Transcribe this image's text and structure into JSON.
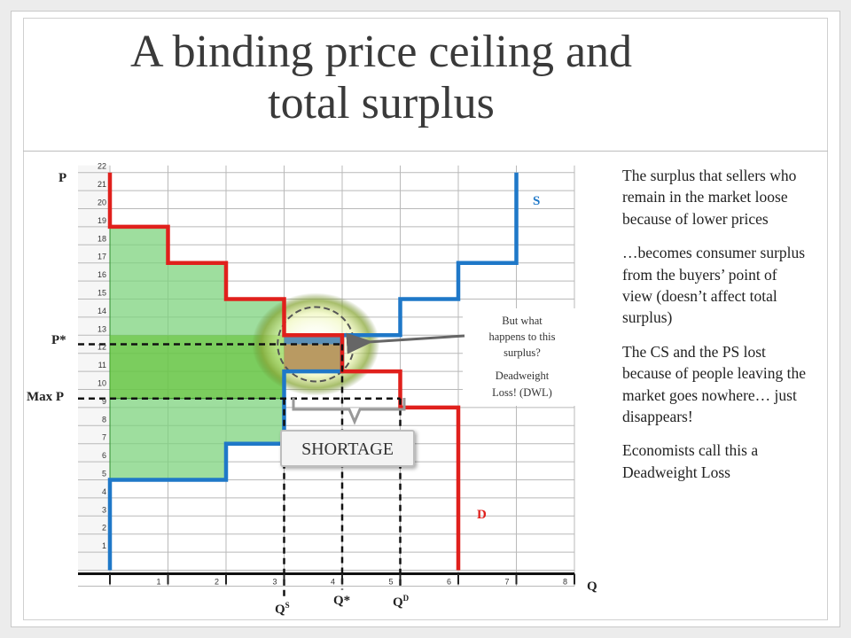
{
  "slide": {
    "title_line1": "A binding price ceiling and",
    "title_line2": "total surplus"
  },
  "axes": {
    "y_label": "P",
    "x_label": "Q",
    "y_ticks": [
      "1",
      "2",
      "3",
      "4",
      "5",
      "6",
      "7",
      "8",
      "9",
      "10",
      "11",
      "12",
      "13",
      "14",
      "15",
      "16",
      "17",
      "18",
      "19",
      "20",
      "21",
      "22"
    ],
    "x_ticks": [
      "1",
      "2",
      "3",
      "4",
      "5",
      "6",
      "7",
      "8"
    ]
  },
  "price_labels": {
    "p_star": "P*",
    "max_p": "Max P"
  },
  "quantity_labels": {
    "qs": "Q",
    "qs_sup": "S",
    "q_star": "Q*",
    "qd": "Q",
    "qd_sup": "D"
  },
  "curves": {
    "supply_label": "S",
    "demand_label": "D",
    "supply_color": "#1f78c8",
    "demand_color": "#e0201c"
  },
  "shortage_label": "SHORTAGE",
  "callout": {
    "line1": "But what",
    "line2": "happens to this",
    "line3": "surplus?",
    "line4": "Deadweight",
    "line5": "Loss! (DWL)"
  },
  "side_text": {
    "p1": "The surplus that sellers who remain in the market loose because of lower prices",
    "p2": "…becomes consumer surplus from the buyers’ point of view (doesn’t affect total surplus)",
    "p3": "The CS and the PS lost because of people leaving the market goes nowhere… just disappears!",
    "p4": "Economists call this a Deadweight Loss"
  },
  "chart_data": {
    "type": "step",
    "xlabel": "Q",
    "ylabel": "P",
    "xlim": [
      0,
      8
    ],
    "ylim": [
      0,
      22
    ],
    "grid": true,
    "series": [
      {
        "name": "S",
        "steps": [
          [
            0,
            0
          ],
          [
            0,
            5
          ],
          [
            2,
            5
          ],
          [
            2,
            7
          ],
          [
            3,
            7
          ],
          [
            3,
            11
          ],
          [
            4,
            11
          ],
          [
            4,
            13
          ],
          [
            5,
            13
          ],
          [
            5,
            15
          ],
          [
            6,
            15
          ],
          [
            6,
            17
          ],
          [
            7,
            17
          ],
          [
            7,
            22
          ]
        ]
      },
      {
        "name": "D",
        "steps": [
          [
            0,
            22
          ],
          [
            0,
            19
          ],
          [
            1,
            19
          ],
          [
            1,
            17
          ],
          [
            2,
            17
          ],
          [
            2,
            15
          ],
          [
            3,
            15
          ],
          [
            3,
            13
          ],
          [
            4,
            13
          ],
          [
            4,
            11
          ],
          [
            5,
            11
          ],
          [
            5,
            9
          ],
          [
            6,
            9
          ],
          [
            6,
            0
          ]
        ]
      }
    ],
    "p_star": 12.5,
    "max_price": 9.5,
    "q_supplied": 3,
    "q_star": 4,
    "q_demanded": 5
  }
}
